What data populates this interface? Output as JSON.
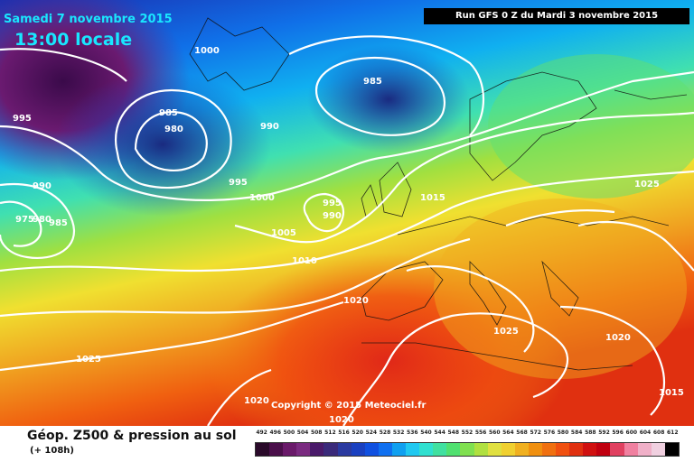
{
  "header": {
    "date": "Samedi 7 novembre 2015",
    "time": "13:00 locale",
    "run": "Run GFS 0 Z du Mardi 3 novembre 2015"
  },
  "footer": {
    "product": "Géop. Z500 & pression au sol",
    "lead": "(+ 108h)",
    "copyright": "Copyright © 2015 Meteociel.fr"
  },
  "pressure_labels": [
    "1000",
    "985",
    "995",
    "985",
    "980",
    "990",
    "995",
    "990",
    "975",
    "980",
    "985",
    "1000",
    "995",
    "990",
    "1005",
    "1010",
    "1015",
    "1025",
    "1020",
    "1025",
    "1020",
    "1015",
    "1025",
    "1020",
    "1020"
  ],
  "scale": {
    "ticks": [
      "492",
      "496",
      "500",
      "504",
      "508",
      "512",
      "516",
      "520",
      "524",
      "528",
      "532",
      "536",
      "540",
      "544",
      "548",
      "552",
      "556",
      "560",
      "564",
      "568",
      "572",
      "576",
      "580",
      "584",
      "588",
      "592",
      "596",
      "600",
      "604",
      "608",
      "612"
    ],
    "colors": [
      "#2a0a2a",
      "#4a0f4a",
      "#6a1a6a",
      "#7a2a80",
      "#4a1a6a",
      "#3a2a7a",
      "#2a3aa0",
      "#1a40c0",
      "#1050e0",
      "#1070f0",
      "#10a0f0",
      "#20c8f0",
      "#30e0d0",
      "#40e0a0",
      "#50e070",
      "#80e050",
      "#b0e040",
      "#e0e040",
      "#f0d030",
      "#f0b020",
      "#f09010",
      "#f07010",
      "#f05010",
      "#e03010",
      "#d01010",
      "#c00010",
      "#e04060",
      "#f080a0",
      "#f0b0c8",
      "#f0d0e0",
      "#000000"
    ]
  }
}
